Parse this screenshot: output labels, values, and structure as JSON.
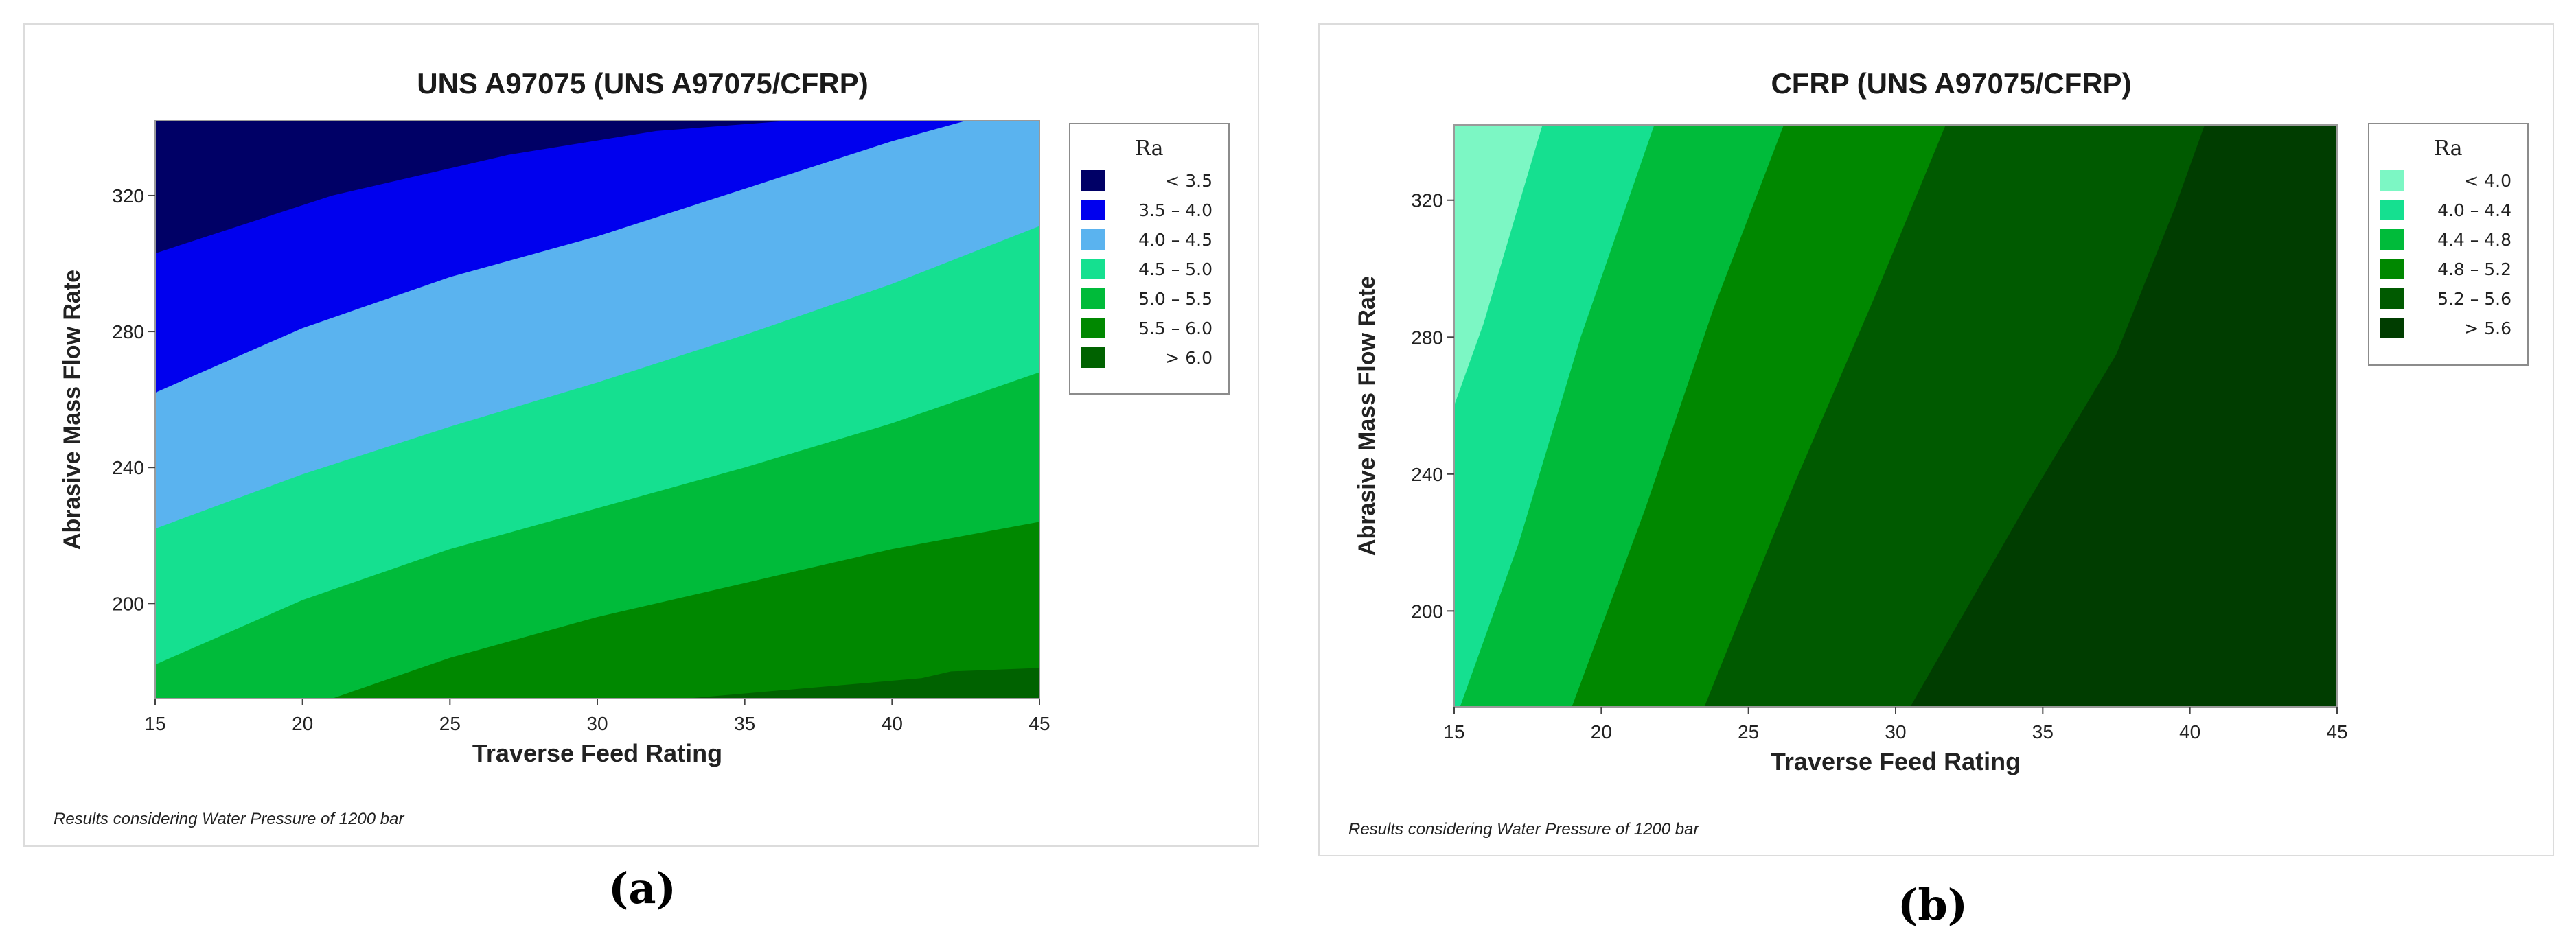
{
  "chart_data": [
    {
      "type": "contour",
      "panel_label": "(a)",
      "title": "UNS A97075 (UNS A97075/CFRP)",
      "xlabel": "Traverse Feed Rating",
      "ylabel": "Abrasive Mass Flow Rate",
      "xlim": [
        15,
        45
      ],
      "ylim": [
        172,
        342
      ],
      "x_ticks": [
        15,
        20,
        25,
        30,
        35,
        40,
        45
      ],
      "y_ticks": [
        200,
        240,
        280,
        320
      ],
      "footnote": "Results considering Water Pressure of 1200 bar",
      "legend": {
        "title": "Ra",
        "levels": [
          {
            "label": "<  3.5",
            "color": "#000066"
          },
          {
            "label": "3.5  –  4.0",
            "color": "#0000ee"
          },
          {
            "label": "4.0  –  4.5",
            "color": "#5ab3ef"
          },
          {
            "label": "4.5  –  5.0",
            "color": "#15e090"
          },
          {
            "label": "5.0  –  5.5",
            "color": "#00bb3a"
          },
          {
            "label": "5.5  –  6.0",
            "color": "#008800"
          },
          {
            "label": ">  6.0",
            "color": "#006200"
          }
        ]
      },
      "contour_boundaries": [
        {
          "between": "<3.5 / 3.5–4.0",
          "points": [
            [
              15,
              303
            ],
            [
              21,
              320
            ],
            [
              27,
              332
            ],
            [
              32,
              339
            ],
            [
              36.5,
              342
            ]
          ]
        },
        {
          "between": "3.5–4.0 / 4.0–4.5",
          "points": [
            [
              15,
              262
            ],
            [
              20,
              281
            ],
            [
              25,
              296
            ],
            [
              30,
              308
            ],
            [
              35,
              322
            ],
            [
              40,
              336
            ],
            [
              42.5,
              342
            ]
          ]
        },
        {
          "between": "4.0–4.5 / 4.5–5.0",
          "points": [
            [
              15,
              222
            ],
            [
              20,
              238
            ],
            [
              25,
              252
            ],
            [
              30,
              265
            ],
            [
              35,
              279
            ],
            [
              40,
              294
            ],
            [
              45,
              311
            ]
          ]
        },
        {
          "between": "4.5–5.0 / 5.0–5.5",
          "points": [
            [
              15,
              182
            ],
            [
              20,
              201
            ],
            [
              25,
              216
            ],
            [
              30,
              228
            ],
            [
              35,
              240
            ],
            [
              40,
              253
            ],
            [
              45,
              268
            ]
          ]
        },
        {
          "between": "5.0–5.5 / 5.5–6.0",
          "points": [
            [
              21,
              172
            ],
            [
              25,
              184
            ],
            [
              30,
              196
            ],
            [
              35,
              206
            ],
            [
              40,
              216
            ],
            [
              45,
              224
            ]
          ]
        },
        {
          "between": "5.5–6.0 / >6.0",
          "points": [
            [
              33,
              172
            ],
            [
              37,
              175
            ],
            [
              41,
              178
            ],
            [
              42,
              180
            ],
            [
              45,
              181
            ]
          ]
        }
      ]
    },
    {
      "type": "contour",
      "panel_label": "(b)",
      "title": "CFRP (UNS A97075/CFRP)",
      "xlabel": "Traverse Feed Rating",
      "ylabel": "Abrasive Mass Flow Rate",
      "xlim": [
        15,
        45
      ],
      "ylim": [
        172,
        342
      ],
      "x_ticks": [
        15,
        20,
        25,
        30,
        35,
        40,
        45
      ],
      "y_ticks": [
        200,
        240,
        280,
        320
      ],
      "footnote": "Results considering Water Pressure of 1200 bar",
      "legend": {
        "title": "Ra",
        "levels": [
          {
            "label": "<  4.0",
            "color": "#7cf7c4"
          },
          {
            "label": "4.0  –  4.4",
            "color": "#15e090"
          },
          {
            "label": "4.4  –  4.8",
            "color": "#00bb3a"
          },
          {
            "label": "4.8  –  5.2",
            "color": "#008800"
          },
          {
            "label": "5.2  –  5.6",
            "color": "#005a00"
          },
          {
            "label": ">  5.6",
            "color": "#003d00"
          }
        ]
      },
      "contour_boundaries": [
        {
          "between": "<4.0 / 4.0–4.4",
          "points": [
            [
              15,
              260
            ],
            [
              16,
              284
            ],
            [
              17,
              313
            ],
            [
              18,
              342
            ]
          ]
        },
        {
          "between": "4.0–4.4 / 4.4–4.8",
          "points": [
            [
              15.2,
              172
            ],
            [
              17.2,
              220
            ],
            [
              19.3,
              280
            ],
            [
              21.8,
              342
            ]
          ]
        },
        {
          "between": "4.4–4.8 / 4.8–5.2",
          "points": [
            [
              19,
              172
            ],
            [
              21.5,
              230
            ],
            [
              23.8,
              288
            ],
            [
              26.2,
              342
            ]
          ]
        },
        {
          "between": "4.8–5.2 / 5.2–5.6",
          "points": [
            [
              23.5,
              172
            ],
            [
              26.5,
              236
            ],
            [
              29.3,
              292
            ],
            [
              31.7,
              342
            ]
          ]
        },
        {
          "between": "5.2–5.6 / >5.6",
          "points": [
            [
              30.5,
              172
            ],
            [
              34.5,
              232
            ],
            [
              37.5,
              275
            ],
            [
              39.5,
              318
            ],
            [
              40.5,
              342
            ]
          ]
        }
      ]
    }
  ]
}
